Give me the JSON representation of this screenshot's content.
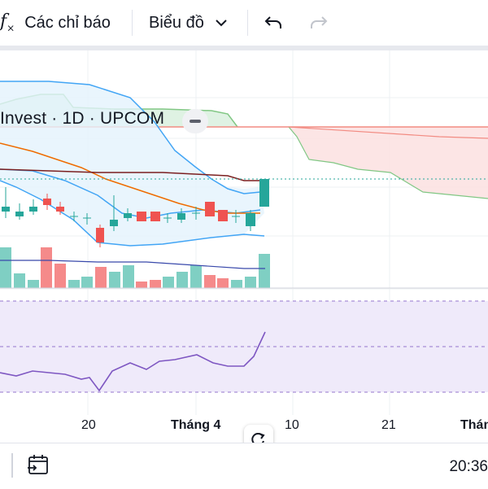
{
  "toolbar": {
    "indicators_icon": "fx-icon",
    "indicators_label": "Các chỉ báo",
    "chart_type_label": "Biểu đồ",
    "undo_icon": "undo-icon",
    "redo_icon": "redo-icon"
  },
  "legend": {
    "symbol_text": "Invest · 1D · UPCOM"
  },
  "x_axis": {
    "labels": [
      "20",
      "Tháng 4",
      "10",
      "21",
      "Thán"
    ]
  },
  "bottom_bar": {
    "calendar_icon": "date-range-icon",
    "time": "20:36"
  },
  "colors": {
    "up": "#26a69a",
    "down": "#ef5350",
    "rsi": "#7e57c2",
    "bollinger": "#2196f3",
    "ma": "#ef6c00",
    "kijun": "#7b1f1f"
  },
  "chart_data": {
    "type": "candlestick",
    "panes": [
      "price",
      "volume",
      "rsi"
    ],
    "candles": [
      {
        "dir": "up"
      },
      {
        "dir": "up"
      },
      {
        "dir": "up"
      },
      {
        "dir": "down"
      },
      {
        "dir": "up"
      },
      {
        "dir": "down"
      },
      {
        "dir": "doji"
      },
      {
        "dir": "doji"
      },
      {
        "dir": "down"
      },
      {
        "dir": "doji"
      },
      {
        "dir": "up"
      },
      {
        "dir": "down"
      },
      {
        "dir": "down"
      },
      {
        "dir": "up"
      },
      {
        "dir": "down"
      },
      {
        "dir": "up"
      },
      {
        "dir": "doji"
      },
      {
        "dir": "down"
      },
      {
        "dir": "up"
      },
      {
        "dir": "up"
      },
      {
        "dir": "up"
      }
    ]
  }
}
